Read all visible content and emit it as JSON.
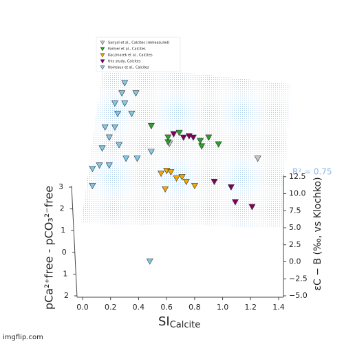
{
  "chart_data": {
    "type": "scatter3d",
    "xlabel": "SI",
    "xlabel_sub": "Calcite",
    "ylabel": "pCa²⁺free - pCO₃²⁻free",
    "zlabel": "εC − B (‰, vs Klochko)",
    "annotation": "R² = 0.75",
    "watermark": "imgflip.com",
    "xlim": [
      0,
      1.4
    ],
    "xticks": [
      {
        "value": 0,
        "label": "0.0"
      },
      0.2,
      0.4,
      0.6,
      0.8,
      {
        "value": 1,
        "label": "1.0"
      },
      1.2,
      1.4
    ],
    "ylim": [
      -2,
      3
    ],
    "yticks": [
      3,
      2,
      1,
      0,
      {
        "value": -1,
        "label": "1"
      },
      {
        "value": -2,
        "label": "2"
      }
    ],
    "zlim": [
      -5,
      12.5
    ],
    "zticks": [
      {
        "value": -5,
        "label": "−5.0"
      },
      {
        "value": -2.5,
        "label": "−2.5"
      },
      {
        "value": 0,
        "label": "0.0"
      },
      2.5,
      {
        "value": 5,
        "label": "5.0"
      },
      7.5,
      {
        "value": 10,
        "label": "10.0"
      },
      12.5
    ],
    "series": [
      {
        "name": "Sanyal et al., Calcites (remeasured)",
        "color": "#c8c8c8",
        "x": [
          0.65,
          1.28
        ],
        "y": [
          1,
          1
        ],
        "z": [
          7.8,
          5.6
        ]
      },
      {
        "name": "Farmer et al., Calcites",
        "color": "#2ca02c",
        "x": [
          0.53,
          0.64,
          0.73,
          0.88,
          0.93,
          1.0,
          0.87,
          0.64
        ],
        "y": [
          2,
          1,
          2,
          1,
          1,
          1,
          1,
          1
        ],
        "z": [
          7.2,
          8.0,
          6.2,
          7.4,
          8.7,
          7.7,
          8.2,
          8.7
        ]
      },
      {
        "name": "Kaczmarek et al., Calcites",
        "color": "#f5a800",
        "x": [
          0.63,
          0.66,
          0.59,
          0.74,
          0.77,
          0.83,
          0.61,
          0.7
        ],
        "y": [
          1,
          1,
          1,
          1,
          1,
          1,
          0,
          1
        ],
        "z": [
          3.8,
          3.6,
          3.4,
          2.9,
          2.2,
          1.6,
          4.3,
          2.7
        ]
      },
      {
        "name": "this study, Calcites",
        "color": "#800060",
        "x": [
          0.69,
          0.76,
          0.8,
          0.83,
          0.97,
          1.09,
          1.11,
          1.23
        ],
        "y": [
          2,
          2,
          2,
          2,
          1,
          1,
          0,
          0
        ],
        "z": [
          6.0,
          5.5,
          5.7,
          5.5,
          2.2,
          1.4,
          2.4,
          1.7
        ]
      },
      {
        "name": "Noireaux et al., Calcites",
        "color": "#7ec8e8",
        "x": [
          0.34,
          0.32,
          0.42,
          0.27,
          0.34,
          0.29,
          0.39,
          0.2,
          0.27,
          0.22,
          0.29,
          0.17,
          0.15,
          0.22,
          0.1,
          0.34,
          0.42,
          0.52,
          0.1,
          0.49
        ],
        "y": [
          2,
          2,
          2,
          2,
          2,
          2,
          2,
          2,
          2,
          1,
          1,
          1,
          1,
          1,
          1,
          1,
          1,
          1,
          1,
          -1
        ],
        "z": [
          13.5,
          12.0,
          12.0,
          10.5,
          10.5,
          9.0,
          9.0,
          7.0,
          7.0,
          8.7,
          7.6,
          7.1,
          4.6,
          4.6,
          4.1,
          5.6,
          5.6,
          6.6,
          1.6,
          -3.1
        ]
      }
    ]
  }
}
